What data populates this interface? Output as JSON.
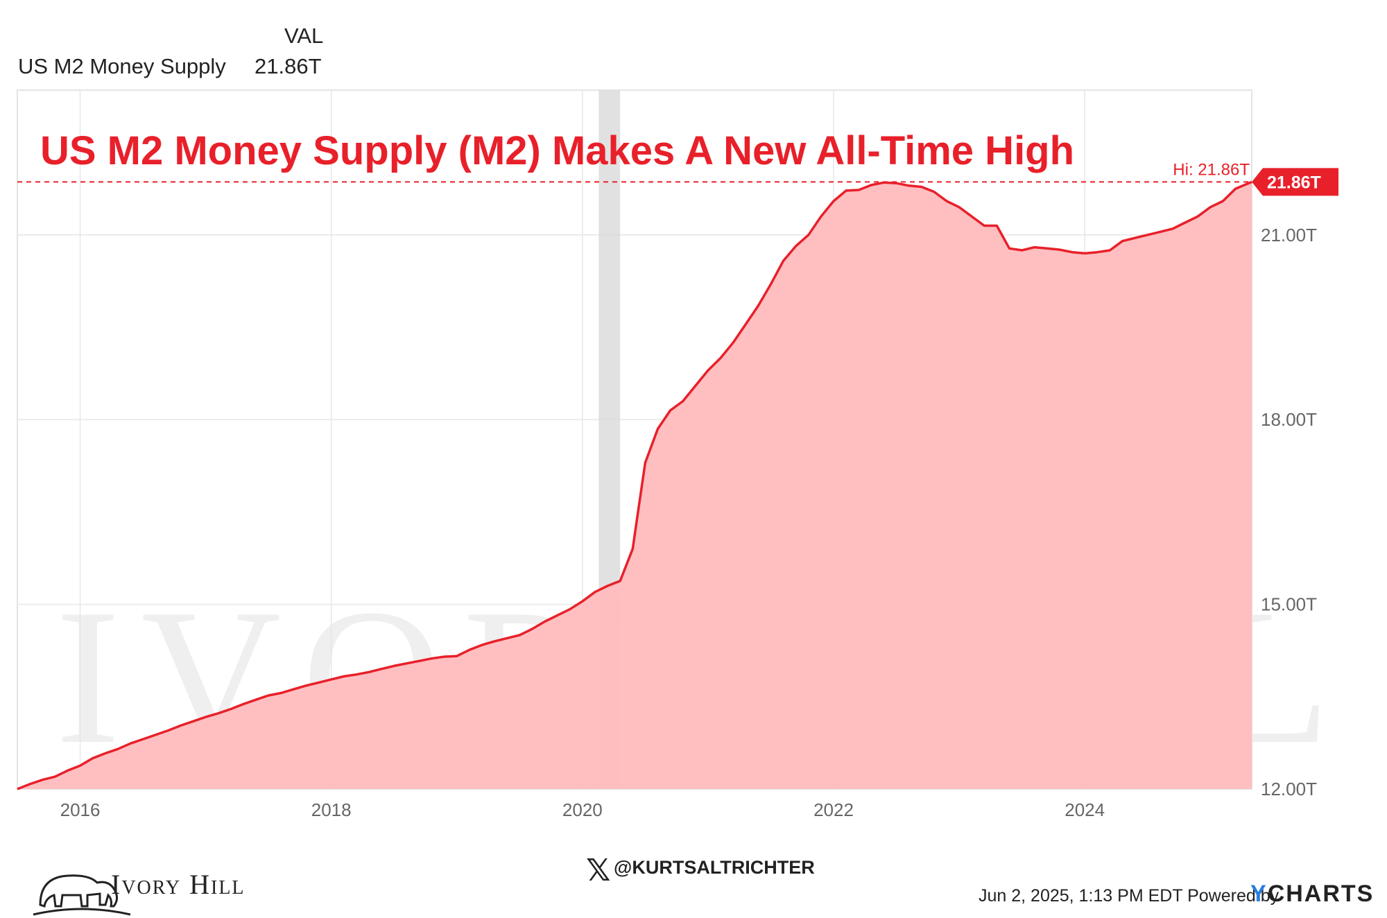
{
  "legend": {
    "header": "VAL",
    "series_name": "US M2 Money Supply",
    "series_value": "21.86T"
  },
  "colors": {
    "line": "#e8202a",
    "fill": "#ffbcbe",
    "recession_band": "#d9d9d9",
    "grid": "#e6e6e6"
  },
  "footer": {
    "brand": "Ivory Hill",
    "handle": "@KURTSALTRICHTER",
    "timestamp": "Jun 2, 2025, 1:13 PM EDT Powered by",
    "provider_y": "Y",
    "provider_rest": "CHARTS"
  },
  "chart_data": {
    "type": "area",
    "title": "US M2 Money Supply (M2) Makes A New All-Time High",
    "xlabel": "",
    "ylabel": "",
    "x_range": [
      2015.5,
      2025.33
    ],
    "ylim": [
      12.0,
      22.0
    ],
    "y_ticks": [
      12,
      15,
      18,
      21
    ],
    "y_tick_labels": [
      "12.00T",
      "15.00T",
      "18.00T",
      "21.00T"
    ],
    "x_ticks": [
      2016,
      2018,
      2020,
      2022,
      2024
    ],
    "x_tick_labels": [
      "2016",
      "2018",
      "2020",
      "2022",
      "2024"
    ],
    "grid": true,
    "recession_band": [
      2020.13,
      2020.3
    ],
    "high_line": {
      "value": 21.86,
      "label": "Hi: 21.86T"
    },
    "last_value_label": "21.86T",
    "series": [
      {
        "name": "US M2 Money Supply",
        "x": [
          2015.5,
          2015.6,
          2015.7,
          2015.8,
          2015.9,
          2016.0,
          2016.1,
          2016.2,
          2016.3,
          2016.4,
          2016.5,
          2016.6,
          2016.7,
          2016.8,
          2016.9,
          2017.0,
          2017.1,
          2017.2,
          2017.3,
          2017.4,
          2017.5,
          2017.6,
          2017.7,
          2017.8,
          2017.9,
          2018.0,
          2018.1,
          2018.2,
          2018.3,
          2018.4,
          2018.5,
          2018.6,
          2018.7,
          2018.8,
          2018.9,
          2019.0,
          2019.1,
          2019.2,
          2019.3,
          2019.4,
          2019.5,
          2019.6,
          2019.7,
          2019.8,
          2019.9,
          2020.0,
          2020.1,
          2020.2,
          2020.3,
          2020.4,
          2020.45,
          2020.5,
          2020.6,
          2020.7,
          2020.8,
          2020.9,
          2021.0,
          2021.1,
          2021.2,
          2021.3,
          2021.4,
          2021.5,
          2021.6,
          2021.7,
          2021.8,
          2021.9,
          2022.0,
          2022.1,
          2022.2,
          2022.3,
          2022.4,
          2022.5,
          2022.6,
          2022.7,
          2022.8,
          2022.9,
          2023.0,
          2023.1,
          2023.2,
          2023.3,
          2023.4,
          2023.5,
          2023.6,
          2023.7,
          2023.8,
          2023.9,
          2024.0,
          2024.1,
          2024.2,
          2024.3,
          2024.4,
          2024.5,
          2024.6,
          2024.7,
          2024.8,
          2024.9,
          2025.0,
          2025.1,
          2025.2,
          2025.33
        ],
        "values": [
          12.0,
          12.08,
          12.15,
          12.2,
          12.3,
          12.38,
          12.5,
          12.58,
          12.65,
          12.74,
          12.81,
          12.88,
          12.95,
          13.03,
          13.1,
          13.17,
          13.23,
          13.3,
          13.38,
          13.45,
          13.52,
          13.56,
          13.62,
          13.68,
          13.73,
          13.78,
          13.83,
          13.86,
          13.9,
          13.95,
          14.0,
          14.04,
          14.08,
          14.12,
          14.15,
          14.16,
          14.26,
          14.34,
          14.4,
          14.45,
          14.5,
          14.6,
          14.72,
          14.82,
          14.92,
          15.05,
          15.2,
          15.3,
          15.38,
          15.9,
          16.6,
          17.3,
          17.85,
          18.15,
          18.3,
          18.55,
          18.8,
          19.0,
          19.25,
          19.55,
          19.85,
          20.2,
          20.58,
          20.82,
          21.0,
          21.3,
          21.55,
          21.72,
          21.73,
          21.81,
          21.85,
          21.84,
          21.8,
          21.78,
          21.7,
          21.55,
          21.45,
          21.3,
          21.15,
          21.15,
          20.78,
          20.75,
          20.8,
          20.78,
          20.76,
          20.72,
          20.7,
          20.72,
          20.75,
          20.9,
          20.95,
          21.0,
          21.05,
          21.1,
          21.2,
          21.3,
          21.45,
          21.55,
          21.75,
          21.86
        ]
      }
    ]
  }
}
